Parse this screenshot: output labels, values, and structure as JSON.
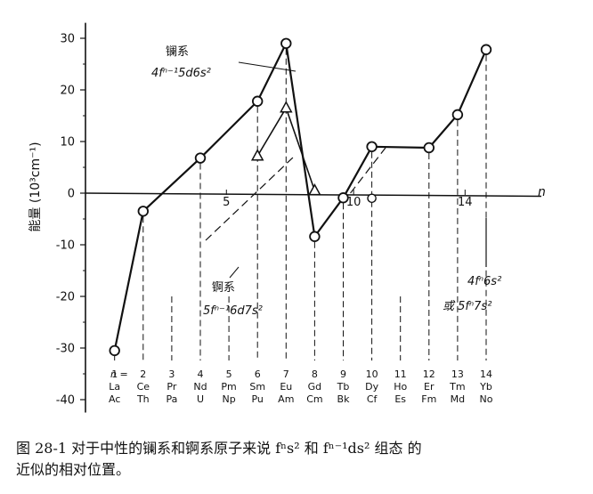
{
  "chart_data": {
    "type": "line",
    "ylabel": "能量 (10³cm⁻¹)",
    "ylim": [
      -45,
      33
    ],
    "yticks": [
      "30",
      "20",
      "10",
      "0",
      "-10",
      "-20",
      "-30",
      "-40"
    ],
    "n_axis_label": "n",
    "n_axis_ticks": [
      "5",
      "10",
      "14"
    ],
    "lanthanide_row": [
      "La",
      "Ce",
      "Pr",
      "Nd",
      "Pm",
      "Sm",
      "Eu",
      "Gd",
      "Tb",
      "Dy",
      "Ho",
      "Er",
      "Tm",
      "Yb"
    ],
    "actinide_row": [
      "Ac",
      "Th",
      "Pa",
      "U",
      "Np",
      "Pu",
      "Am",
      "Cm",
      "Bk",
      "Cf",
      "Es",
      "Fm",
      "Md",
      "No"
    ],
    "n_values": [
      "1",
      "2",
      "3",
      "4",
      "5",
      "6",
      "7",
      "8",
      "9",
      "10",
      "11",
      "12",
      "13",
      "14"
    ],
    "n_prefix": "n =",
    "series": [
      {
        "name": "镧系",
        "marker": "circle",
        "points": [
          [
            1,
            -30.5
          ],
          [
            2,
            -3.5
          ],
          [
            4,
            6.8
          ],
          [
            6,
            17.8
          ],
          [
            7,
            29.0
          ],
          [
            8,
            -8.4
          ],
          [
            9,
            -0.9
          ],
          [
            10,
            9.0
          ],
          [
            12,
            8.8
          ],
          [
            13,
            15.2
          ],
          [
            14,
            27.8
          ]
        ]
      },
      {
        "name": "锕系",
        "marker": "triangle",
        "points": [
          [
            6,
            7.2
          ],
          [
            7,
            16.5
          ],
          [
            8,
            0.5
          ]
        ]
      }
    ],
    "open_point": [
      10,
      -1.0
    ],
    "annotations": {
      "lanthanide_title": "镧系",
      "lanthanide_formula": "4fⁿ⁻¹5d6s²",
      "actinide_title": "锕系",
      "actinide_formula": "5fⁿ⁻¹6d7s²",
      "ground_formula_1": "4fⁿ6s²",
      "ground_formula_2": "或 5fⁿ7s²"
    },
    "colors": {
      "ink": "#111111"
    }
  },
  "caption": {
    "line1": "图 28-1   对于中性的镧系和锕系原子来说 fⁿs² 和 fⁿ⁻¹ds² 组态 的",
    "line2": "近似的相对位置。"
  }
}
